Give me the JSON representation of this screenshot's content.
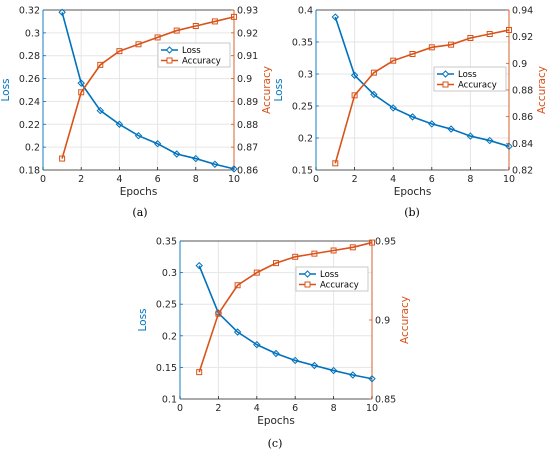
{
  "colors": {
    "loss": "#0072BD",
    "accuracy": "#D95319",
    "grid": "#e6e6e6",
    "axis": "#262626"
  },
  "chart_data": [
    {
      "type": "line",
      "caption": "(a)",
      "xlabel": "Epochs",
      "xlim": [
        0,
        10
      ],
      "xticks": [
        0,
        2,
        4,
        6,
        8,
        10
      ],
      "left_axis": {
        "label": "Loss",
        "ylim": [
          0.18,
          0.32
        ],
        "ticks": [
          "0.18",
          "0.2",
          "0.22",
          "0.24",
          "0.26",
          "0.28",
          "0.3",
          "0.32"
        ]
      },
      "right_axis": {
        "label": "Accuracy",
        "ylim": [
          0.86,
          0.93
        ],
        "ticks": [
          "0.86",
          "0.87",
          "0.88",
          "0.89",
          "0.9",
          "0.91",
          "0.92",
          "0.93"
        ]
      },
      "grid": true,
      "legend_position": "upper-right",
      "x": [
        1,
        2,
        3,
        4,
        5,
        6,
        7,
        8,
        9,
        10
      ],
      "series": [
        {
          "name": "Loss",
          "axis": "left",
          "marker": "diamond",
          "values": [
            0.318,
            0.256,
            0.232,
            0.22,
            0.21,
            0.203,
            0.194,
            0.19,
            0.185,
            0.181
          ]
        },
        {
          "name": "Accuracy",
          "axis": "right",
          "marker": "square",
          "values": [
            0.865,
            0.894,
            0.906,
            0.912,
            0.915,
            0.918,
            0.921,
            0.923,
            0.925,
            0.927
          ]
        }
      ]
    },
    {
      "type": "line",
      "caption": "(b)",
      "xlabel": "Epochs",
      "xlim": [
        0,
        10
      ],
      "xticks": [
        0,
        2,
        4,
        6,
        8,
        10
      ],
      "left_axis": {
        "label": "Loss",
        "ylim": [
          0.15,
          0.4
        ],
        "ticks": [
          "0.15",
          "0.2",
          "0.25",
          "0.3",
          "0.35",
          "0.4"
        ]
      },
      "right_axis": {
        "label": "Accuracy",
        "ylim": [
          0.82,
          0.94
        ],
        "ticks": [
          "0.82",
          "0.84",
          "0.86",
          "0.88",
          "0.9",
          "0.92",
          "0.94"
        ]
      },
      "grid": true,
      "legend_position": "upper-right",
      "x": [
        1,
        2,
        3,
        4,
        5,
        6,
        7,
        8,
        9,
        10
      ],
      "series": [
        {
          "name": "Loss",
          "axis": "left",
          "marker": "diamond",
          "values": [
            0.389,
            0.298,
            0.268,
            0.247,
            0.233,
            0.222,
            0.214,
            0.203,
            0.196,
            0.187
          ]
        },
        {
          "name": "Accuracy",
          "axis": "right",
          "marker": "square",
          "values": [
            0.825,
            0.876,
            0.893,
            0.902,
            0.907,
            0.912,
            0.914,
            0.919,
            0.922,
            0.925
          ]
        }
      ]
    },
    {
      "type": "line",
      "caption": "(c)",
      "xlabel": "Epochs",
      "xlim": [
        0,
        10
      ],
      "xticks": [
        0,
        2,
        4,
        6,
        8,
        10
      ],
      "left_axis": {
        "label": "Loss",
        "ylim": [
          0.1,
          0.35
        ],
        "ticks": [
          "0.1",
          "0.15",
          "0.2",
          "0.25",
          "0.3",
          "0.35"
        ]
      },
      "right_axis": {
        "label": "Accuracy",
        "ylim": [
          0.85,
          0.95
        ],
        "ticks": [
          "0.85",
          "0.9",
          "0.95"
        ]
      },
      "grid": true,
      "legend_position": "upper-right",
      "x": [
        1,
        2,
        3,
        4,
        5,
        6,
        7,
        8,
        9,
        10
      ],
      "series": [
        {
          "name": "Loss",
          "axis": "left",
          "marker": "diamond",
          "values": [
            0.311,
            0.236,
            0.206,
            0.186,
            0.172,
            0.161,
            0.153,
            0.145,
            0.138,
            0.132
          ]
        },
        {
          "name": "Accuracy",
          "axis": "right",
          "marker": "square",
          "values": [
            0.867,
            0.904,
            0.922,
            0.93,
            0.936,
            0.94,
            0.942,
            0.944,
            0.946,
            0.949
          ]
        }
      ]
    }
  ]
}
